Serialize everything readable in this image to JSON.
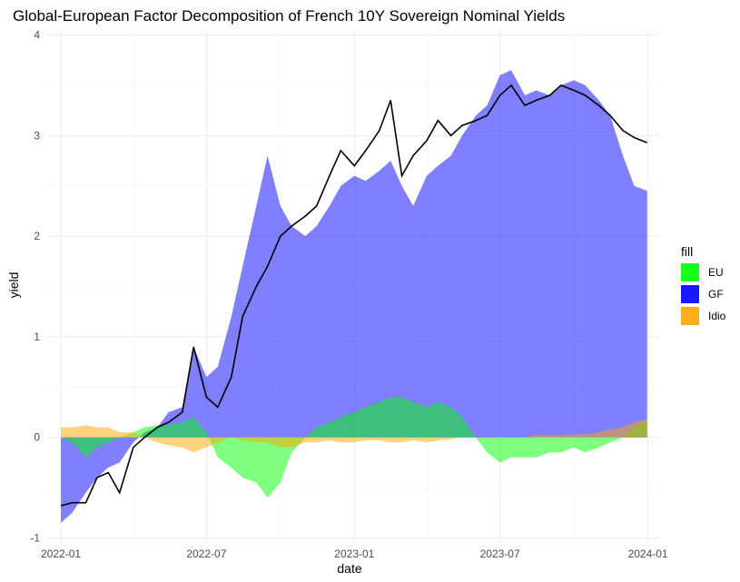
{
  "chart_data": {
    "type": "area",
    "title": "Global-European Factor Decomposition of French 10Y Sovereign Nominal Yields",
    "xlabel": "date",
    "ylabel": "yield",
    "x_ticks": [
      "2022-01",
      "2022-07",
      "2023-01",
      "2023-07",
      "2024-01"
    ],
    "x_range": [
      "2021-12-15",
      "2024-01-15"
    ],
    "ylim": [
      -1.05,
      4.05
    ],
    "y_ticks": [
      -1,
      0,
      1,
      2,
      3,
      4
    ],
    "grid": true,
    "legend": {
      "title": "fill",
      "placement": "right",
      "entries": [
        {
          "label": "EU",
          "color": "#00ff00"
        },
        {
          "label": "GF",
          "color": "#0000ff"
        },
        {
          "label": "Idio",
          "color": "#ffa500"
        }
      ]
    },
    "series": [
      {
        "name": "EU",
        "color": "#00ff00",
        "opacity": 0.5,
        "points": [
          [
            "2022-01-01",
            0.0
          ],
          [
            "2022-01-15",
            -0.05
          ],
          [
            "2022-02-01",
            -0.2
          ],
          [
            "2022-02-15",
            -0.1
          ],
          [
            "2022-03-01",
            -0.05
          ],
          [
            "2022-03-15",
            0.0
          ],
          [
            "2022-04-01",
            0.05
          ],
          [
            "2022-04-15",
            0.1
          ],
          [
            "2022-05-01",
            0.12
          ],
          [
            "2022-05-15",
            0.12
          ],
          [
            "2022-06-01",
            0.15
          ],
          [
            "2022-06-15",
            0.2
          ],
          [
            "2022-07-01",
            0.05
          ],
          [
            "2022-07-15",
            -0.2
          ],
          [
            "2022-08-01",
            -0.3
          ],
          [
            "2022-08-15",
            -0.4
          ],
          [
            "2022-09-01",
            -0.45
          ],
          [
            "2022-09-15",
            -0.6
          ],
          [
            "2022-10-01",
            -0.45
          ],
          [
            "2022-10-15",
            -0.15
          ],
          [
            "2022-11-01",
            0.0
          ],
          [
            "2022-11-15",
            0.1
          ],
          [
            "2022-12-01",
            0.15
          ],
          [
            "2022-12-15",
            0.2
          ],
          [
            "2023-01-01",
            0.25
          ],
          [
            "2023-01-15",
            0.3
          ],
          [
            "2023-02-01",
            0.35
          ],
          [
            "2023-02-15",
            0.4
          ],
          [
            "2023-03-01",
            0.4
          ],
          [
            "2023-03-15",
            0.35
          ],
          [
            "2023-04-01",
            0.3
          ],
          [
            "2023-04-15",
            0.35
          ],
          [
            "2023-05-01",
            0.3
          ],
          [
            "2023-05-15",
            0.2
          ],
          [
            "2023-06-01",
            0.0
          ],
          [
            "2023-06-15",
            -0.15
          ],
          [
            "2023-07-01",
            -0.25
          ],
          [
            "2023-07-15",
            -0.2
          ],
          [
            "2023-08-01",
            -0.2
          ],
          [
            "2023-08-15",
            -0.2
          ],
          [
            "2023-09-01",
            -0.15
          ],
          [
            "2023-09-15",
            -0.15
          ],
          [
            "2023-10-01",
            -0.1
          ],
          [
            "2023-10-15",
            -0.15
          ],
          [
            "2023-11-01",
            -0.1
          ],
          [
            "2023-11-15",
            -0.05
          ],
          [
            "2023-12-01",
            0.0
          ],
          [
            "2023-12-15",
            0.1
          ],
          [
            "2023-12-31",
            0.18
          ]
        ]
      },
      {
        "name": "GF",
        "color": "#0000ff",
        "opacity": 0.5,
        "points": [
          [
            "2022-01-01",
            -0.85
          ],
          [
            "2022-01-15",
            -0.75
          ],
          [
            "2022-02-01",
            -0.55
          ],
          [
            "2022-02-15",
            -0.4
          ],
          [
            "2022-03-01",
            -0.3
          ],
          [
            "2022-03-15",
            -0.25
          ],
          [
            "2022-04-01",
            -0.05
          ],
          [
            "2022-04-15",
            0.05
          ],
          [
            "2022-05-01",
            0.1
          ],
          [
            "2022-05-15",
            0.25
          ],
          [
            "2022-06-01",
            0.3
          ],
          [
            "2022-06-15",
            0.9
          ],
          [
            "2022-07-01",
            0.6
          ],
          [
            "2022-07-15",
            0.7
          ],
          [
            "2022-08-01",
            1.2
          ],
          [
            "2022-08-15",
            1.7
          ],
          [
            "2022-09-01",
            2.3
          ],
          [
            "2022-09-15",
            2.8
          ],
          [
            "2022-10-01",
            2.3
          ],
          [
            "2022-10-15",
            2.1
          ],
          [
            "2022-11-01",
            2.0
          ],
          [
            "2022-11-15",
            2.1
          ],
          [
            "2022-12-01",
            2.3
          ],
          [
            "2022-12-15",
            2.5
          ],
          [
            "2023-01-01",
            2.6
          ],
          [
            "2023-01-15",
            2.55
          ],
          [
            "2023-02-01",
            2.65
          ],
          [
            "2023-02-15",
            2.75
          ],
          [
            "2023-03-01",
            2.5
          ],
          [
            "2023-03-15",
            2.3
          ],
          [
            "2023-04-01",
            2.6
          ],
          [
            "2023-04-15",
            2.7
          ],
          [
            "2023-05-01",
            2.8
          ],
          [
            "2023-05-15",
            3.0
          ],
          [
            "2023-06-01",
            3.2
          ],
          [
            "2023-06-15",
            3.3
          ],
          [
            "2023-07-01",
            3.6
          ],
          [
            "2023-07-15",
            3.65
          ],
          [
            "2023-08-01",
            3.4
          ],
          [
            "2023-08-15",
            3.45
          ],
          [
            "2023-09-01",
            3.4
          ],
          [
            "2023-09-15",
            3.5
          ],
          [
            "2023-10-01",
            3.55
          ],
          [
            "2023-10-15",
            3.5
          ],
          [
            "2023-11-01",
            3.35
          ],
          [
            "2023-11-15",
            3.2
          ],
          [
            "2023-12-01",
            2.8
          ],
          [
            "2023-12-15",
            2.5
          ],
          [
            "2023-12-31",
            2.45
          ]
        ]
      },
      {
        "name": "Idio",
        "color": "#ffa500",
        "opacity": 0.5,
        "points": [
          [
            "2022-01-01",
            0.1
          ],
          [
            "2022-01-15",
            0.1
          ],
          [
            "2022-02-01",
            0.12
          ],
          [
            "2022-02-15",
            0.1
          ],
          [
            "2022-03-01",
            0.1
          ],
          [
            "2022-03-15",
            0.05
          ],
          [
            "2022-04-01",
            0.05
          ],
          [
            "2022-04-15",
            0.0
          ],
          [
            "2022-05-01",
            -0.05
          ],
          [
            "2022-05-15",
            -0.08
          ],
          [
            "2022-06-01",
            -0.1
          ],
          [
            "2022-06-15",
            -0.15
          ],
          [
            "2022-07-01",
            -0.1
          ],
          [
            "2022-07-15",
            -0.05
          ],
          [
            "2022-08-01",
            0.0
          ],
          [
            "2022-08-15",
            -0.03
          ],
          [
            "2022-09-01",
            -0.05
          ],
          [
            "2022-09-15",
            -0.05
          ],
          [
            "2022-10-01",
            -0.1
          ],
          [
            "2022-10-15",
            -0.1
          ],
          [
            "2022-11-01",
            -0.05
          ],
          [
            "2022-11-15",
            -0.05
          ],
          [
            "2022-12-01",
            -0.03
          ],
          [
            "2022-12-15",
            -0.05
          ],
          [
            "2023-01-01",
            -0.05
          ],
          [
            "2023-01-15",
            -0.03
          ],
          [
            "2023-02-01",
            -0.03
          ],
          [
            "2023-02-15",
            -0.05
          ],
          [
            "2023-03-01",
            -0.05
          ],
          [
            "2023-03-15",
            -0.03
          ],
          [
            "2023-04-01",
            -0.05
          ],
          [
            "2023-04-15",
            -0.03
          ],
          [
            "2023-05-01",
            -0.02
          ],
          [
            "2023-05-15",
            0.0
          ],
          [
            "2023-06-01",
            0.0
          ],
          [
            "2023-06-15",
            0.0
          ],
          [
            "2023-07-01",
            0.0
          ],
          [
            "2023-07-15",
            0.0
          ],
          [
            "2023-08-01",
            0.0
          ],
          [
            "2023-08-15",
            0.02
          ],
          [
            "2023-09-01",
            0.02
          ],
          [
            "2023-09-15",
            0.02
          ],
          [
            "2023-10-01",
            0.03
          ],
          [
            "2023-10-15",
            0.03
          ],
          [
            "2023-11-01",
            0.05
          ],
          [
            "2023-11-15",
            0.08
          ],
          [
            "2023-12-01",
            0.1
          ],
          [
            "2023-12-15",
            0.15
          ],
          [
            "2023-12-31",
            0.18
          ]
        ]
      }
    ],
    "line": {
      "color": "#000000",
      "points": [
        [
          "2022-01-01",
          -0.68
        ],
        [
          "2022-01-15",
          -0.65
        ],
        [
          "2022-02-01",
          -0.65
        ],
        [
          "2022-02-15",
          -0.4
        ],
        [
          "2022-03-01",
          -0.35
        ],
        [
          "2022-03-15",
          -0.55
        ],
        [
          "2022-04-01",
          -0.1
        ],
        [
          "2022-04-15",
          0.0
        ],
        [
          "2022-05-01",
          0.1
        ],
        [
          "2022-05-15",
          0.15
        ],
        [
          "2022-06-01",
          0.25
        ],
        [
          "2022-06-15",
          0.9
        ],
        [
          "2022-07-01",
          0.4
        ],
        [
          "2022-07-15",
          0.3
        ],
        [
          "2022-08-01",
          0.6
        ],
        [
          "2022-08-15",
          1.2
        ],
        [
          "2022-09-01",
          1.5
        ],
        [
          "2022-09-15",
          1.7
        ],
        [
          "2022-10-01",
          2.0
        ],
        [
          "2022-10-15",
          2.1
        ],
        [
          "2022-11-01",
          2.2
        ],
        [
          "2022-11-15",
          2.3
        ],
        [
          "2022-12-01",
          2.6
        ],
        [
          "2022-12-15",
          2.85
        ],
        [
          "2023-01-01",
          2.7
        ],
        [
          "2023-01-15",
          2.85
        ],
        [
          "2023-02-01",
          3.05
        ],
        [
          "2023-02-15",
          3.35
        ],
        [
          "2023-03-01",
          2.6
        ],
        [
          "2023-03-15",
          2.8
        ],
        [
          "2023-04-01",
          2.95
        ],
        [
          "2023-04-15",
          3.15
        ],
        [
          "2023-05-01",
          3.0
        ],
        [
          "2023-05-15",
          3.1
        ],
        [
          "2023-06-01",
          3.15
        ],
        [
          "2023-06-15",
          3.2
        ],
        [
          "2023-07-01",
          3.4
        ],
        [
          "2023-07-15",
          3.5
        ],
        [
          "2023-08-01",
          3.3
        ],
        [
          "2023-08-15",
          3.35
        ],
        [
          "2023-09-01",
          3.4
        ],
        [
          "2023-09-15",
          3.5
        ],
        [
          "2023-10-01",
          3.45
        ],
        [
          "2023-10-15",
          3.4
        ],
        [
          "2023-11-01",
          3.3
        ],
        [
          "2023-11-15",
          3.2
        ],
        [
          "2023-12-01",
          3.05
        ],
        [
          "2023-12-15",
          2.98
        ],
        [
          "2023-12-31",
          2.93
        ]
      ]
    }
  }
}
